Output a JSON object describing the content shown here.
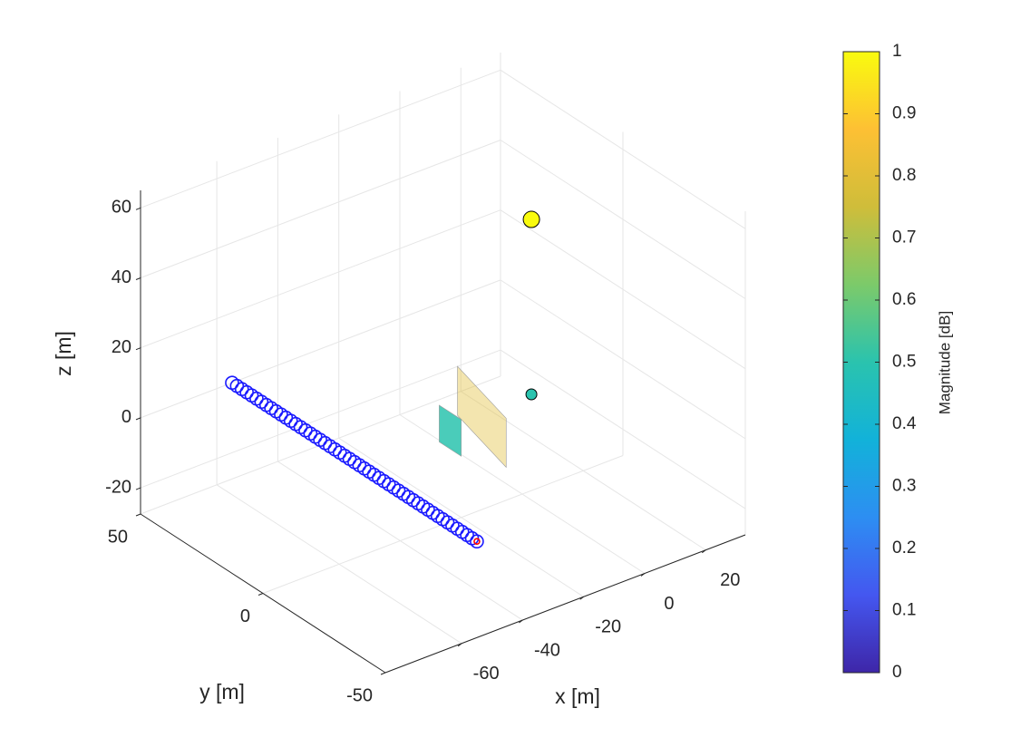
{
  "chart_data": {
    "type": "scatter3d",
    "xlabel": "x [m]",
    "ylabel": "y [m]",
    "zlabel": "z [m]",
    "xlim": [
      -85,
      33
    ],
    "ylim": [
      -50,
      50
    ],
    "zlim": [
      -27.5,
      65
    ],
    "xticks": [
      -60,
      -40,
      -20,
      0,
      20
    ],
    "yticks": [
      -50,
      0,
      50
    ],
    "zticks": [
      -20,
      0,
      20,
      40,
      60
    ],
    "grid": true,
    "colormap": [
      "#3e26a8",
      "#4457f0",
      "#2d8ef2",
      "#12b2d9",
      "#2ac3ae",
      "#7cca6a",
      "#cfbd3a",
      "#fdc034",
      "#f9fb0e"
    ],
    "colorbar": {
      "label": "Magnitude [dB]",
      "clim": [
        0,
        1
      ],
      "ticks": [
        0,
        0.1,
        0.2,
        0.3,
        0.4,
        0.5,
        0.6,
        0.7,
        0.8,
        0.9,
        1
      ]
    },
    "surfaces": [
      {
        "x": [
          -10,
          -16.5,
          -16.5,
          -10
        ],
        "y": [
          14,
          -14,
          -14,
          14
        ],
        "z": [
          6,
          6,
          -8,
          -8
        ],
        "value": 0.8,
        "alpha": 0.4
      },
      {
        "x": [
          -20,
          -20,
          -20,
          -20
        ],
        "y": [
          9,
          0,
          0,
          9
        ],
        "z": [
          0.5,
          0.5,
          -10,
          -10
        ],
        "value": 0.5,
        "alpha": 0.85
      }
    ],
    "series": [
      {
        "color": "#1a1aff",
        "marker_size": 7,
        "x": [
          -55,
          -55,
          -55,
          -55,
          -55,
          -55,
          -55,
          -55,
          -55,
          -55,
          -55,
          -55,
          -55,
          -55,
          -55,
          -55,
          -55,
          -55,
          -55,
          -55,
          -55,
          -55,
          -55,
          -55,
          -55,
          -55,
          -55,
          -55,
          -55,
          -55,
          -55,
          -55,
          -55,
          -55,
          -55,
          -55,
          -55,
          -55,
          -55,
          -55,
          -55,
          -55,
          -55,
          -55,
          -55,
          -55,
          -55,
          -55,
          -55,
          -55,
          -55
        ],
        "y": [
          50,
          48,
          46,
          44,
          42,
          40,
          38,
          36,
          34,
          32,
          30,
          28,
          26,
          24,
          22,
          20,
          18,
          16,
          14,
          12,
          10,
          8,
          6,
          4,
          2,
          0,
          -2,
          -4,
          -6,
          -8,
          -10,
          -12,
          -14,
          -16,
          -18,
          -20,
          -22,
          -24,
          -26,
          -28,
          -30,
          -32,
          -34,
          -36,
          -38,
          -40,
          -42,
          -44,
          -46,
          -48,
          -50
        ],
        "z": [
          0,
          0,
          0,
          0,
          0,
          0,
          0,
          0,
          0,
          0,
          0,
          0,
          0,
          0,
          0,
          0,
          0,
          0,
          0,
          0,
          0,
          0,
          0,
          0,
          0,
          0,
          0,
          0,
          0,
          0,
          0,
          0,
          0,
          0,
          0,
          0,
          0,
          0,
          0,
          0,
          0,
          0,
          0,
          0,
          0,
          0,
          0,
          0,
          0,
          0,
          0
        ]
      },
      {
        "color": "#ff0000",
        "marker_size": 3,
        "x": [
          -55
        ],
        "y": [
          -50
        ],
        "z": [
          0
        ]
      },
      {
        "marker_size": [
          9,
          6
        ],
        "x": [
          3,
          3
        ],
        "y": [
          0,
          0
        ],
        "z": [
          50,
          0
        ],
        "values": [
          1,
          0.5
        ]
      }
    ]
  }
}
